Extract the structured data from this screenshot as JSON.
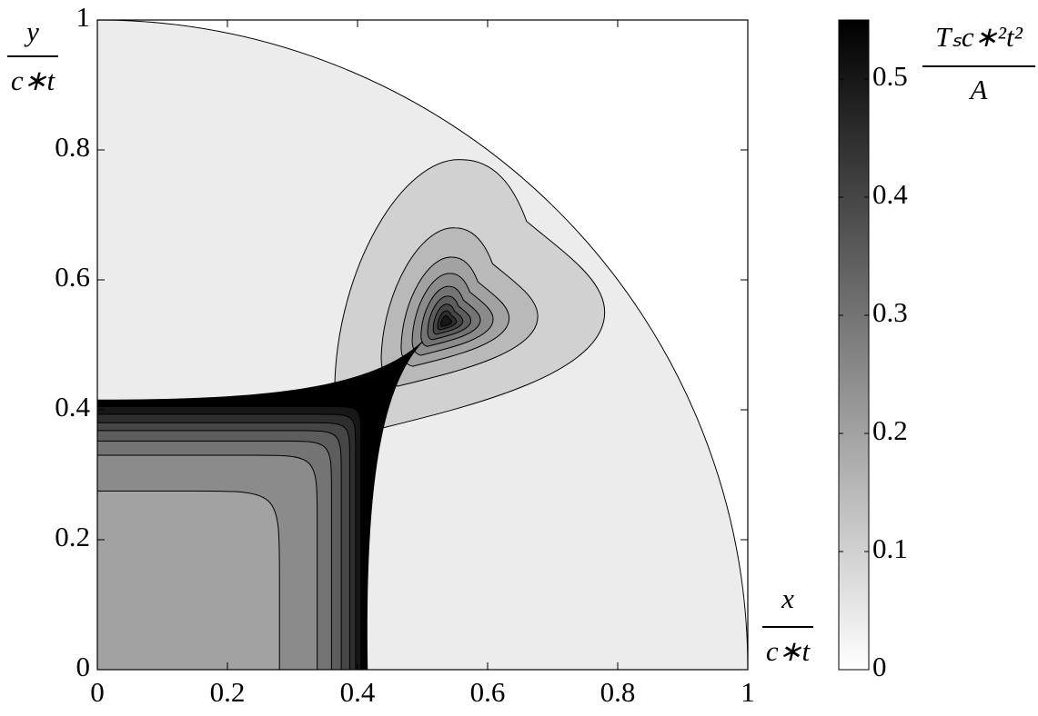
{
  "chart_data": {
    "type": "contour",
    "xlim": [
      0,
      1
    ],
    "ylim": [
      0,
      1
    ],
    "xticks": [
      0,
      0.2,
      0.4,
      0.6,
      0.8,
      1
    ],
    "yticks": [
      0,
      0.2,
      0.4,
      0.6,
      0.8,
      1
    ],
    "x_label": {
      "top": "x",
      "bottom": "c∗t"
    },
    "y_label": {
      "top": "y",
      "bottom": "c∗t"
    },
    "colorbar": {
      "clim": [
        0,
        0.55
      ],
      "ticks": [
        0,
        0.1,
        0.2,
        0.3,
        0.4,
        0.5
      ],
      "label": {
        "top": "Tₛc∗²t²",
        "bottom": "A"
      }
    },
    "levels": [
      0.04,
      0.1,
      0.15,
      0.2,
      0.25,
      0.3,
      0.35,
      0.4,
      0.45,
      0.5,
      0.55
    ]
  }
}
